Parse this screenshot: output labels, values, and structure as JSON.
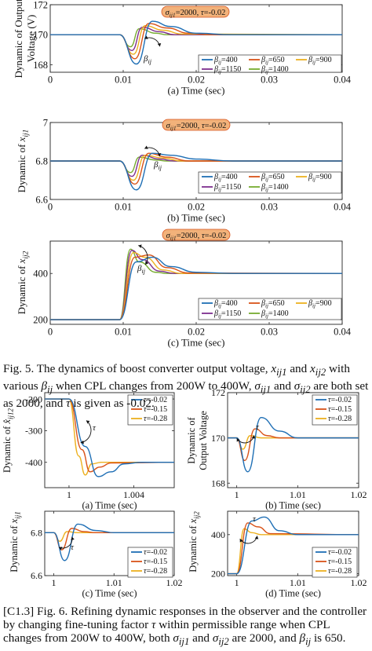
{
  "colors": {
    "s1": "#1f6fb5",
    "s2": "#d95319",
    "s3": "#edb120",
    "s4": "#7e2f8e",
    "s5": "#77ac30",
    "badge_fill": "#f2b27a",
    "badge_stroke": "#d9541e"
  },
  "fig5": {
    "badge": "σij1=2000, τ=-0.02",
    "beta_label": "βij",
    "legend": [
      "βij=400",
      "βij=650",
      "βij=900",
      "βij=1150",
      "βij=1400"
    ],
    "caption_text": "Fig. 5. The dynamics of boost converter output voltage, xij1 and xij2 with various βij when CPL changes from 200W to 400W, σij1 and σij2 are both set as 2000, and τ is given as -0.02."
  },
  "fig6": {
    "tau_label": "τ",
    "legend": [
      "τ=-0.02",
      "τ=-0.15",
      "τ=-0.28"
    ],
    "caption_text": "[C1.3] Fig. 6. Refining dynamic responses in the observer and the controller by changing fine-tuning factor τ within permissible range when CPL changes from 200W to 400W, both σij1 and σij2 are 2000, and βij is 650."
  },
  "chart_data": [
    {
      "type": "line",
      "id": "fig5a",
      "ylabel": "Dynamic of Output Voltage (V)",
      "xlabel": "(a) Time (sec)",
      "xlim": [
        0,
        0.04
      ],
      "ylim": [
        167.5,
        172
      ],
      "xticks": [
        "0",
        "0.01",
        "0.02",
        "0.03",
        "0.04"
      ],
      "yticks": [
        "168",
        "170",
        "172"
      ],
      "legend": "bottom-right",
      "series": [
        {
          "name": "βij=400",
          "values": [
            [
              0,
              170
            ],
            [
              0.0095,
              170
            ],
            [
              0.0118,
              168.05
            ],
            [
              0.014,
              170.9
            ],
            [
              0.0165,
              170.55
            ],
            [
              0.02,
              170.1
            ],
            [
              0.025,
              170
            ],
            [
              0.04,
              170
            ]
          ]
        },
        {
          "name": "βij=650",
          "values": [
            [
              0,
              170
            ],
            [
              0.0095,
              170
            ],
            [
              0.0116,
              168.4
            ],
            [
              0.0135,
              170.75
            ],
            [
              0.016,
              170.45
            ],
            [
              0.019,
              170.1
            ],
            [
              0.022,
              170
            ],
            [
              0.04,
              170
            ]
          ]
        },
        {
          "name": "βij=900",
          "values": [
            [
              0,
              170
            ],
            [
              0.0095,
              170
            ],
            [
              0.0114,
              168.7
            ],
            [
              0.013,
              170.6
            ],
            [
              0.0155,
              170.3
            ],
            [
              0.018,
              170.05
            ],
            [
              0.04,
              170
            ]
          ]
        },
        {
          "name": "βij=1150",
          "values": [
            [
              0,
              170
            ],
            [
              0.0095,
              170
            ],
            [
              0.0112,
              168.95
            ],
            [
              0.0126,
              170.5
            ],
            [
              0.015,
              170.2
            ],
            [
              0.017,
              170
            ],
            [
              0.04,
              170
            ]
          ]
        },
        {
          "name": "βij=1400",
          "values": [
            [
              0,
              170
            ],
            [
              0.0095,
              170
            ],
            [
              0.011,
              169.2
            ],
            [
              0.0122,
              170.4
            ],
            [
              0.0145,
              170.1
            ],
            [
              0.016,
              170
            ],
            [
              0.04,
              170
            ]
          ]
        }
      ]
    },
    {
      "type": "line",
      "id": "fig5b",
      "ylabel": "Dynamic of xij1",
      "xlabel": "(b) Time (sec)",
      "xlim": [
        0,
        0.04
      ],
      "ylim": [
        6.6,
        7
      ],
      "xticks": [
        "0",
        "0.01",
        "0.02",
        "0.03",
        "0.04"
      ],
      "yticks": [
        "6.6",
        "6.8",
        "7"
      ],
      "legend": "bottom-right",
      "series": [
        {
          "name": "βij=400",
          "values": [
            [
              0,
              6.8
            ],
            [
              0.0095,
              6.8
            ],
            [
              0.0118,
              6.65
            ],
            [
              0.014,
              6.84
            ],
            [
              0.0165,
              6.83
            ],
            [
              0.02,
              6.81
            ],
            [
              0.025,
              6.8
            ],
            [
              0.04,
              6.8
            ]
          ]
        },
        {
          "name": "βij=650",
          "values": [
            [
              0,
              6.8
            ],
            [
              0.0095,
              6.8
            ],
            [
              0.0116,
              6.68
            ],
            [
              0.0135,
              6.84
            ],
            [
              0.016,
              6.82
            ],
            [
              0.019,
              6.8
            ],
            [
              0.04,
              6.8
            ]
          ]
        },
        {
          "name": "βij=900",
          "values": [
            [
              0,
              6.8
            ],
            [
              0.0095,
              6.8
            ],
            [
              0.0114,
              6.7
            ],
            [
              0.013,
              6.83
            ],
            [
              0.0155,
              6.815
            ],
            [
              0.018,
              6.8
            ],
            [
              0.04,
              6.8
            ]
          ]
        },
        {
          "name": "βij=1150",
          "values": [
            [
              0,
              6.8
            ],
            [
              0.0095,
              6.8
            ],
            [
              0.0112,
              6.72
            ],
            [
              0.0126,
              6.83
            ],
            [
              0.015,
              6.81
            ],
            [
              0.017,
              6.8
            ],
            [
              0.04,
              6.8
            ]
          ]
        },
        {
          "name": "βij=1400",
          "values": [
            [
              0,
              6.8
            ],
            [
              0.0095,
              6.8
            ],
            [
              0.011,
              6.74
            ],
            [
              0.0122,
              6.82
            ],
            [
              0.0145,
              6.805
            ],
            [
              0.016,
              6.8
            ],
            [
              0.04,
              6.8
            ]
          ]
        }
      ]
    },
    {
      "type": "line",
      "id": "fig5c",
      "ylabel": "Dynamic of xij2",
      "xlabel": "(c) Time (sec)",
      "xlim": [
        0,
        0.04
      ],
      "ylim": [
        180,
        540
      ],
      "xticks": [
        "0",
        "0.01",
        "0.02",
        "0.03",
        "0.04"
      ],
      "yticks": [
        "200",
        "400"
      ],
      "legend": "bottom-right",
      "series": [
        {
          "name": "βij=400",
          "values": [
            [
              0,
              200
            ],
            [
              0.0095,
              200
            ],
            [
              0.0118,
              450
            ],
            [
              0.014,
              470
            ],
            [
              0.0165,
              430
            ],
            [
              0.02,
              405
            ],
            [
              0.025,
              400
            ],
            [
              0.04,
              400
            ]
          ]
        },
        {
          "name": "βij=650",
          "values": [
            [
              0,
              200
            ],
            [
              0.0095,
              200
            ],
            [
              0.0116,
              470
            ],
            [
              0.0135,
              480
            ],
            [
              0.016,
              425
            ],
            [
              0.019,
              402
            ],
            [
              0.04,
              400
            ]
          ]
        },
        {
          "name": "βij=900",
          "values": [
            [
              0,
              200
            ],
            [
              0.0095,
              200
            ],
            [
              0.0114,
              490
            ],
            [
              0.013,
              470
            ],
            [
              0.0155,
              415
            ],
            [
              0.018,
              400
            ],
            [
              0.04,
              400
            ]
          ]
        },
        {
          "name": "βij=1150",
          "values": [
            [
              0,
              200
            ],
            [
              0.0095,
              200
            ],
            [
              0.0112,
              500
            ],
            [
              0.0126,
              460
            ],
            [
              0.015,
              410
            ],
            [
              0.017,
              400
            ],
            [
              0.04,
              400
            ]
          ]
        },
        {
          "name": "βij=1400",
          "values": [
            [
              0,
              200
            ],
            [
              0.0095,
              200
            ],
            [
              0.011,
              505
            ],
            [
              0.0122,
              450
            ],
            [
              0.0145,
              405
            ],
            [
              0.016,
              400
            ],
            [
              0.04,
              400
            ]
          ]
        }
      ]
    },
    {
      "type": "line",
      "id": "fig6a",
      "ylabel": "Dynamic of x̂ij12",
      "xlabel": "(a) Time (sec)",
      "xlim": [
        0.9985,
        1.0065
      ],
      "ylim": [
        -480,
        -180
      ],
      "xticks": [
        "1",
        "1.004"
      ],
      "yticks": [
        "-200",
        "-300",
        "-400"
      ],
      "legend": "top-right",
      "series": [
        {
          "name": "τ=-0.02",
          "values": [
            [
              0.9985,
              -200
            ],
            [
              1.0,
              -200
            ],
            [
              1.001,
              -350
            ],
            [
              1.0018,
              -445
            ],
            [
              1.0026,
              -430
            ],
            [
              1.0034,
              -405
            ],
            [
              1.0045,
              -400
            ],
            [
              1.0065,
              -400
            ]
          ]
        },
        {
          "name": "τ=-0.15",
          "values": [
            [
              0.9985,
              -200
            ],
            [
              1.0,
              -200
            ],
            [
              1.0008,
              -360
            ],
            [
              1.0013,
              -430
            ],
            [
              1.0019,
              -415
            ],
            [
              1.0026,
              -402
            ],
            [
              1.0065,
              -400
            ]
          ]
        },
        {
          "name": "τ=-0.28",
          "values": [
            [
              0.9985,
              -200
            ],
            [
              1.0,
              -200
            ],
            [
              1.0006,
              -380
            ],
            [
              1.001,
              -440
            ],
            [
              1.0014,
              -405
            ],
            [
              1.002,
              -400
            ],
            [
              1.0065,
              -400
            ]
          ]
        }
      ]
    },
    {
      "type": "line",
      "id": "fig6b",
      "ylabel": "Dynamic of Output Voltage",
      "xlabel": "(b) Time (sec)",
      "xlim": [
        0.9985,
        1.02
      ],
      "ylim": [
        167.8,
        172
      ],
      "xticks": [
        "1",
        "1.01",
        "1.02"
      ],
      "yticks": [
        "168",
        "170",
        "172"
      ],
      "legend": "top-right",
      "series": [
        {
          "name": "τ=-0.02",
          "values": [
            [
              0.9985,
              170
            ],
            [
              1.0,
              170
            ],
            [
              1.0018,
              168.5
            ],
            [
              1.004,
              170.9
            ],
            [
              1.007,
              170.3
            ],
            [
              1.01,
              170
            ],
            [
              1.02,
              170
            ]
          ]
        },
        {
          "name": "τ=-0.15",
          "values": [
            [
              0.9985,
              170
            ],
            [
              1.0,
              170
            ],
            [
              1.0013,
              169.0
            ],
            [
              1.003,
              170.4
            ],
            [
              1.005,
              170.1
            ],
            [
              1.007,
              170
            ],
            [
              1.02,
              170
            ]
          ]
        },
        {
          "name": "τ=-0.28",
          "values": [
            [
              0.9985,
              170
            ],
            [
              1.0,
              170
            ],
            [
              1.001,
              169.5
            ],
            [
              1.0022,
              170.1
            ],
            [
              1.004,
              170
            ],
            [
              1.02,
              170
            ]
          ]
        }
      ]
    },
    {
      "type": "line",
      "id": "fig6c",
      "ylabel": "Dynamic of xij1",
      "xlabel": "(c) Time (sec)",
      "xlim": [
        0.9985,
        1.02
      ],
      "ylim": [
        6.6,
        6.9
      ],
      "xticks": [
        "1",
        "1.01",
        "1.02"
      ],
      "yticks": [
        "6.6",
        "6.8"
      ],
      "legend": "bottom-right",
      "series": [
        {
          "name": "τ=-0.02",
          "values": [
            [
              0.9985,
              6.8
            ],
            [
              1.0,
              6.8
            ],
            [
              1.0018,
              6.67
            ],
            [
              1.004,
              6.84
            ],
            [
              1.007,
              6.81
            ],
            [
              1.01,
              6.8
            ],
            [
              1.02,
              6.8
            ]
          ]
        },
        {
          "name": "τ=-0.15",
          "values": [
            [
              0.9985,
              6.8
            ],
            [
              1.0,
              6.8
            ],
            [
              1.0013,
              6.72
            ],
            [
              1.003,
              6.82
            ],
            [
              1.005,
              6.805
            ],
            [
              1.007,
              6.8
            ],
            [
              1.02,
              6.8
            ]
          ]
        },
        {
          "name": "τ=-0.28",
          "values": [
            [
              0.9985,
              6.8
            ],
            [
              1.0,
              6.8
            ],
            [
              1.001,
              6.76
            ],
            [
              1.0022,
              6.805
            ],
            [
              1.004,
              6.8
            ],
            [
              1.02,
              6.8
            ]
          ]
        }
      ]
    },
    {
      "type": "line",
      "id": "fig6d",
      "ylabel": "Dynamic of xij2",
      "xlabel": "(d) Time (sec)",
      "xlim": [
        0.9985,
        1.02
      ],
      "ylim": [
        190,
        520
      ],
      "xticks": [
        "1",
        "1.01",
        "1.02"
      ],
      "yticks": [
        "200",
        "400"
      ],
      "legend": "bottom-right",
      "series": [
        {
          "name": "τ=-0.02",
          "values": [
            [
              0.9985,
              200
            ],
            [
              1.0,
              200
            ],
            [
              1.0025,
              470
            ],
            [
              1.0045,
              490
            ],
            [
              1.007,
              420
            ],
            [
              1.01,
              400
            ],
            [
              1.02,
              400
            ]
          ]
        },
        {
          "name": "τ=-0.15",
          "values": [
            [
              0.9985,
              200
            ],
            [
              1.0,
              200
            ],
            [
              1.0018,
              460
            ],
            [
              1.0035,
              440
            ],
            [
              1.0055,
              405
            ],
            [
              1.02,
              400
            ]
          ]
        },
        {
          "name": "τ=-0.28",
          "values": [
            [
              0.9985,
              200
            ],
            [
              1.0,
              200
            ],
            [
              1.0012,
              430
            ],
            [
              1.0025,
              410
            ],
            [
              1.004,
              400
            ],
            [
              1.02,
              400
            ]
          ]
        }
      ]
    }
  ]
}
